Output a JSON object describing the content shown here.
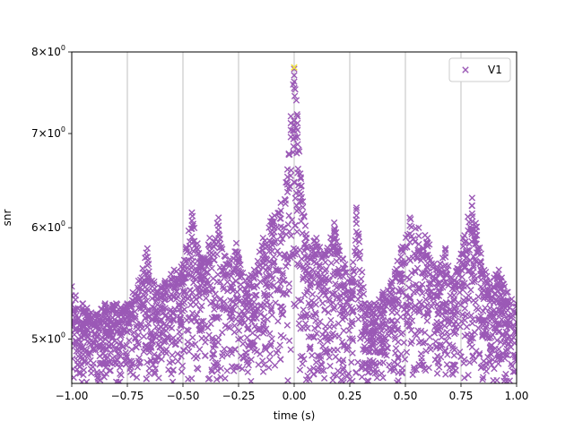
{
  "chart_data": {
    "type": "scatter",
    "title": "",
    "xlabel": "time (s)",
    "ylabel": "snr",
    "xlim": [
      -1.0,
      1.0
    ],
    "ylim": [
      4.65,
      8.0
    ],
    "yscale": "log",
    "grid": "vertical lines at x ticks",
    "legend_position": "top-right",
    "x_ticks": [
      -1.0,
      -0.75,
      -0.5,
      -0.25,
      0.0,
      0.25,
      0.5,
      0.75,
      1.0
    ],
    "x_tick_labels": [
      "−1.00",
      "−0.75",
      "−0.50",
      "−0.25",
      "0.00",
      "0.25",
      "0.50",
      "0.75",
      "1.00"
    ],
    "y_ticks": [
      {
        "value": 5,
        "mantissa": "5",
        "base": "10",
        "exp": "0"
      },
      {
        "value": 6,
        "mantissa": "6",
        "base": "10",
        "exp": "0"
      },
      {
        "value": 7,
        "mantissa": "7",
        "base": "10",
        "exp": "0"
      },
      {
        "value": 8,
        "mantissa": "8",
        "base": "10",
        "exp": "0"
      }
    ],
    "series": [
      {
        "name": "V1",
        "color": "#9b59b6",
        "marker": "x",
        "envelope": {
          "x": [
            -1.0,
            -0.95,
            -0.9,
            -0.85,
            -0.8,
            -0.75,
            -0.7,
            -0.66,
            -0.62,
            -0.58,
            -0.54,
            -0.5,
            -0.46,
            -0.42,
            -0.38,
            -0.34,
            -0.3,
            -0.26,
            -0.22,
            -0.18,
            -0.14,
            -0.1,
            -0.06,
            -0.03,
            -0.015,
            0.0,
            0.015,
            0.03,
            0.06,
            0.1,
            0.14,
            0.18,
            0.22,
            0.26,
            0.28,
            0.32,
            0.36,
            0.4,
            0.44,
            0.48,
            0.52,
            0.56,
            0.6,
            0.64,
            0.68,
            0.72,
            0.76,
            0.8,
            0.84,
            0.88,
            0.92,
            0.96,
            1.0
          ],
          "y": [
            5.45,
            5.3,
            5.2,
            5.3,
            5.3,
            5.3,
            5.5,
            5.8,
            5.4,
            5.5,
            5.6,
            5.65,
            6.15,
            5.7,
            5.9,
            6.1,
            5.65,
            5.85,
            5.5,
            5.6,
            5.9,
            6.1,
            6.25,
            6.6,
            7.2,
            7.78,
            7.2,
            6.5,
            5.8,
            5.9,
            5.75,
            6.05,
            5.7,
            5.5,
            6.2,
            5.3,
            5.3,
            5.4,
            5.5,
            5.8,
            6.1,
            6.0,
            5.9,
            5.6,
            5.8,
            5.5,
            5.9,
            6.3,
            5.75,
            5.5,
            5.6,
            5.4,
            5.3
          ]
        },
        "y_floor": 4.65
      }
    ],
    "highlight_points": [
      {
        "x": 0.0,
        "y": 7.8,
        "color": "#f0e442",
        "marker": "x"
      }
    ]
  }
}
